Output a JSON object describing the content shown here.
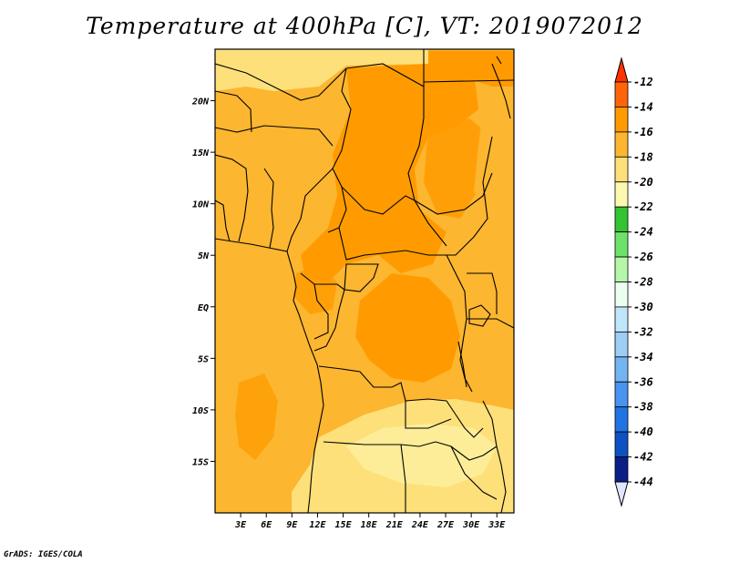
{
  "title": "Temperature at 400hPa [C], VT: 2019072012",
  "footer": "GrADS: IGES/COLA",
  "map": {
    "lon_range": [
      0,
      35
    ],
    "lat_range": [
      -20,
      25
    ],
    "lon_ticks": [
      {
        "value": 3,
        "label": "3E"
      },
      {
        "value": 6,
        "label": "6E"
      },
      {
        "value": 9,
        "label": "9E"
      },
      {
        "value": 12,
        "label": "12E"
      },
      {
        "value": 15,
        "label": "15E"
      },
      {
        "value": 18,
        "label": "18E"
      },
      {
        "value": 21,
        "label": "21E"
      },
      {
        "value": 24,
        "label": "24E"
      },
      {
        "value": 27,
        "label": "27E"
      },
      {
        "value": 30,
        "label": "30E"
      },
      {
        "value": 33,
        "label": "33E"
      }
    ],
    "lat_ticks": [
      {
        "value": 20,
        "label": "20N"
      },
      {
        "value": 15,
        "label": "15N"
      },
      {
        "value": 10,
        "label": "10N"
      },
      {
        "value": 5,
        "label": "5N"
      },
      {
        "value": 0,
        "label": "EQ"
      },
      {
        "value": -5,
        "label": "5S"
      },
      {
        "value": -10,
        "label": "10S"
      },
      {
        "value": -15,
        "label": "15S"
      }
    ],
    "background_color": "#fcb630"
  },
  "colorbar": {
    "labels": [
      "-12",
      "-14",
      "-16",
      "-18",
      "-20",
      "-22",
      "-24",
      "-26",
      "-28",
      "-30",
      "-32",
      "-34",
      "-36",
      "-38",
      "-40",
      "-42",
      "-44"
    ],
    "colors": [
      "#ff6408",
      "#ff9b00",
      "#fcb630",
      "#fde07a",
      "#fdf8b0",
      "#34c333",
      "#6de26a",
      "#b5f6a8",
      "#ebfff0",
      "#c0e6fa",
      "#9dcef5",
      "#73b4f2",
      "#4894f0",
      "#2073e3",
      "#0c52c3",
      "#0a1e86"
    ],
    "top_triangle_color": "#ff3300",
    "bottom_triangle_color": "#e0e6ff"
  }
}
